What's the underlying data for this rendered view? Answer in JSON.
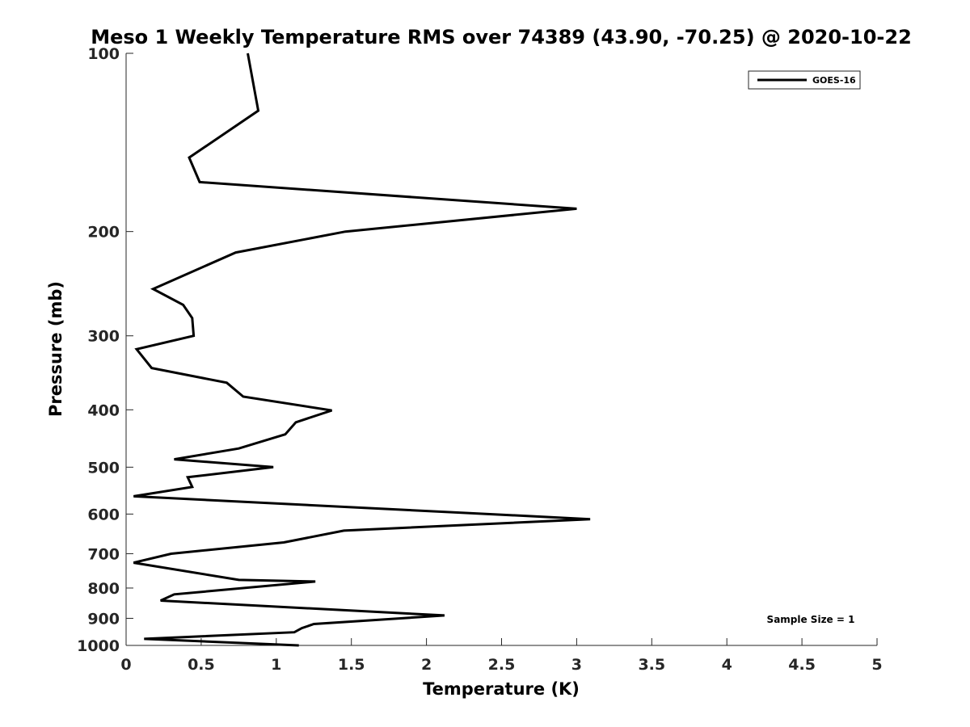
{
  "chart_data": {
    "type": "line",
    "title": "Meso 1 Weekly Temperature RMS over 74389 (43.90, -70.25) @ 2020-10-22",
    "xlabel": "Temperature (K)",
    "ylabel": "Pressure (mb)",
    "xlim": [
      0,
      5
    ],
    "ylim": [
      100,
      1000
    ],
    "y_scale": "log",
    "y_reversed": true,
    "grid": false,
    "legend_position": "top-right",
    "x_ticks": [
      "0",
      "0.5",
      "1",
      "1.5",
      "2",
      "2.5",
      "3",
      "3.5",
      "4",
      "4.5",
      "5"
    ],
    "y_ticks": [
      "100",
      "200",
      "300",
      "400",
      "500",
      "600",
      "700",
      "800",
      "900",
      "1000"
    ],
    "series": [
      {
        "name": "GOES-16",
        "color": "#000000",
        "points": [
          [
            0.81,
            100
          ],
          [
            0.88,
            125
          ],
          [
            0.42,
            150
          ],
          [
            0.49,
            165
          ],
          [
            3.0,
            183
          ],
          [
            1.46,
            200
          ],
          [
            0.73,
            217
          ],
          [
            0.18,
            250
          ],
          [
            0.38,
            266
          ],
          [
            0.44,
            280
          ],
          [
            0.45,
            300
          ],
          [
            0.07,
            316
          ],
          [
            0.17,
            340
          ],
          [
            0.67,
            360
          ],
          [
            0.78,
            380
          ],
          [
            1.37,
            401
          ],
          [
            1.13,
            420
          ],
          [
            1.06,
            440
          ],
          [
            0.75,
            465
          ],
          [
            0.32,
            485
          ],
          [
            0.98,
            500
          ],
          [
            0.41,
            520
          ],
          [
            0.44,
            540
          ],
          [
            0.05,
            560
          ],
          [
            3.09,
            612
          ],
          [
            1.45,
            640
          ],
          [
            1.05,
            670
          ],
          [
            0.3,
            700
          ],
          [
            0.05,
            725
          ],
          [
            0.75,
            775
          ],
          [
            1.26,
            780
          ],
          [
            0.32,
            820
          ],
          [
            0.23,
            840
          ],
          [
            2.12,
            890
          ],
          [
            1.25,
            920
          ],
          [
            1.17,
            935
          ],
          [
            1.12,
            950
          ],
          [
            0.12,
            975
          ],
          [
            1.15,
            1000
          ]
        ]
      }
    ],
    "annotations": [
      "Sample Size = 1"
    ]
  }
}
